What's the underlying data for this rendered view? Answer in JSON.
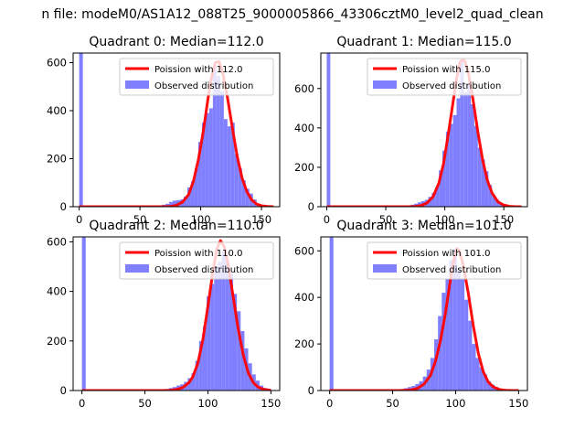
{
  "figure": {
    "suptitle": "n file: modeM0/AS1A12_088T25_9000005866_43306cztM0_level2_quad_clean"
  },
  "colors": {
    "histogram": "#8080ff",
    "poisson": "#ff0000",
    "axes": "#000000",
    "background": "#ffffff"
  },
  "chart_data": [
    {
      "type": "bar",
      "title": "Quadrant 0: Median=112.0",
      "median": 112,
      "xlim": [
        -5,
        165
      ],
      "ylim": [
        0,
        640
      ],
      "xticks": [
        0,
        50,
        100,
        150
      ],
      "yticks": [
        0,
        200,
        400,
        600
      ],
      "legend": {
        "placement": "top-right",
        "entries": [
          "Poission with 112.0",
          "Observed distribution"
        ]
      },
      "hist_x": [
        0,
        62,
        65,
        68,
        71,
        74,
        77,
        80,
        83,
        86,
        89,
        92,
        95,
        98,
        101,
        104,
        107,
        110,
        113,
        116,
        119,
        122,
        125,
        128,
        131,
        134,
        137,
        140,
        143,
        146,
        149,
        152
      ],
      "hist_y": [
        640,
        3,
        5,
        8,
        12,
        20,
        25,
        27,
        30,
        42,
        80,
        105,
        160,
        270,
        350,
        390,
        410,
        590,
        545,
        480,
        365,
        335,
        350,
        220,
        160,
        110,
        75,
        55,
        30,
        12,
        6,
        3
      ],
      "hist_width": 3,
      "poisson_x": [
        0,
        60,
        65,
        70,
        75,
        80,
        85,
        90,
        94,
        98,
        102,
        106,
        109,
        112,
        115,
        118,
        122,
        126,
        130,
        134,
        138,
        142,
        146,
        150,
        155,
        160
      ],
      "poisson_y": [
        0,
        0,
        0,
        0,
        1,
        6,
        19,
        50,
        106,
        194,
        310,
        450,
        540,
        600,
        605,
        560,
        455,
        330,
        210,
        120,
        62,
        28,
        11,
        4,
        1,
        0
      ]
    },
    {
      "type": "bar",
      "title": "Quadrant 1: Median=115.0",
      "median": 115,
      "xlim": [
        -5,
        170
      ],
      "ylim": [
        0,
        780
      ],
      "xticks": [
        0,
        50,
        100,
        150
      ],
      "yticks": [
        0,
        200,
        400,
        600
      ],
      "legend": {
        "placement": "top-right",
        "entries": [
          "Poission with 115.0",
          "Observed distribution"
        ]
      },
      "hist_x": [
        0,
        65,
        68,
        71,
        74,
        77,
        80,
        83,
        86,
        89,
        92,
        95,
        98,
        101,
        104,
        107,
        110,
        113,
        116,
        119,
        122,
        125,
        128,
        131,
        134,
        137,
        140,
        143,
        146,
        149,
        152
      ],
      "hist_y": [
        780,
        3,
        5,
        10,
        15,
        22,
        28,
        35,
        50,
        70,
        100,
        185,
        285,
        380,
        420,
        465,
        550,
        745,
        580,
        620,
        520,
        410,
        300,
        240,
        180,
        110,
        60,
        35,
        20,
        8,
        3
      ],
      "hist_width": 3,
      "poisson_x": [
        0,
        65,
        70,
        75,
        80,
        85,
        90,
        95,
        99,
        103,
        107,
        110,
        113,
        115,
        117,
        120,
        124,
        128,
        132,
        136,
        140,
        145,
        150,
        155,
        160,
        165
      ],
      "poisson_y": [
        0,
        0,
        0,
        1,
        6,
        19,
        50,
        120,
        220,
        370,
        530,
        650,
        735,
        745,
        740,
        680,
        540,
        380,
        240,
        135,
        70,
        25,
        8,
        2,
        0,
        0
      ]
    },
    {
      "type": "bar",
      "title": "Quadrant 2: Median=110.0",
      "median": 110,
      "xlim": [
        -7,
        157
      ],
      "ylim": [
        0,
        620
      ],
      "xticks": [
        0,
        50,
        100,
        150
      ],
      "yticks": [
        0,
        200,
        400,
        600
      ],
      "legend": {
        "placement": "top-right",
        "entries": [
          "Poission with 110.0",
          "Observed distribution"
        ]
      },
      "hist_x": [
        0,
        60,
        63,
        66,
        69,
        72,
        75,
        78,
        81,
        84,
        87,
        90,
        93,
        96,
        99,
        102,
        105,
        108,
        111,
        114,
        117,
        120,
        123,
        126,
        129,
        132,
        135,
        138,
        141,
        144,
        147
      ],
      "hist_y": [
        620,
        2,
        4,
        6,
        10,
        14,
        20,
        25,
        35,
        50,
        70,
        120,
        200,
        260,
        380,
        430,
        500,
        520,
        560,
        520,
        470,
        390,
        320,
        240,
        170,
        110,
        65,
        40,
        20,
        10,
        5
      ],
      "hist_width": 3,
      "poisson_x": [
        0,
        60,
        65,
        70,
        75,
        80,
        85,
        88,
        92,
        96,
        100,
        104,
        107,
        110,
        113,
        116,
        120,
        124,
        128,
        132,
        136,
        140,
        145,
        150
      ],
      "poisson_y": [
        0,
        0,
        0,
        1,
        4,
        12,
        32,
        55,
        110,
        205,
        340,
        480,
        570,
        605,
        580,
        510,
        380,
        250,
        145,
        72,
        32,
        13,
        4,
        1
      ]
    },
    {
      "type": "bar",
      "title": "Quadrant 3: Median=101.0",
      "median": 101,
      "xlim": [
        -7,
        157
      ],
      "ylim": [
        0,
        660
      ],
      "xticks": [
        0,
        50,
        100,
        150
      ],
      "yticks": [
        0,
        200,
        400,
        600
      ],
      "legend": {
        "placement": "top-right",
        "entries": [
          "Poission with 101.0",
          "Observed distribution"
        ]
      },
      "hist_x": [
        0,
        50,
        53,
        56,
        59,
        62,
        65,
        68,
        71,
        74,
        77,
        80,
        83,
        86,
        89,
        92,
        95,
        98,
        101,
        104,
        107,
        110,
        113,
        116,
        119,
        122,
        125,
        128,
        131,
        134,
        137,
        140
      ],
      "hist_y": [
        660,
        2,
        4,
        6,
        10,
        15,
        20,
        28,
        40,
        60,
        90,
        140,
        220,
        320,
        420,
        480,
        560,
        610,
        520,
        480,
        390,
        300,
        200,
        140,
        100,
        70,
        40,
        25,
        15,
        8,
        4,
        2
      ],
      "hist_width": 3,
      "poisson_x": [
        0,
        55,
        60,
        65,
        70,
        75,
        80,
        84,
        88,
        92,
        96,
        99,
        101,
        103,
        106,
        110,
        114,
        118,
        122,
        126,
        130,
        135,
        140,
        145,
        150
      ],
      "poisson_y": [
        0,
        0,
        1,
        3,
        10,
        28,
        65,
        125,
        215,
        335,
        480,
        570,
        610,
        600,
        540,
        420,
        280,
        160,
        80,
        36,
        15,
        4,
        1,
        0,
        0
      ]
    }
  ]
}
